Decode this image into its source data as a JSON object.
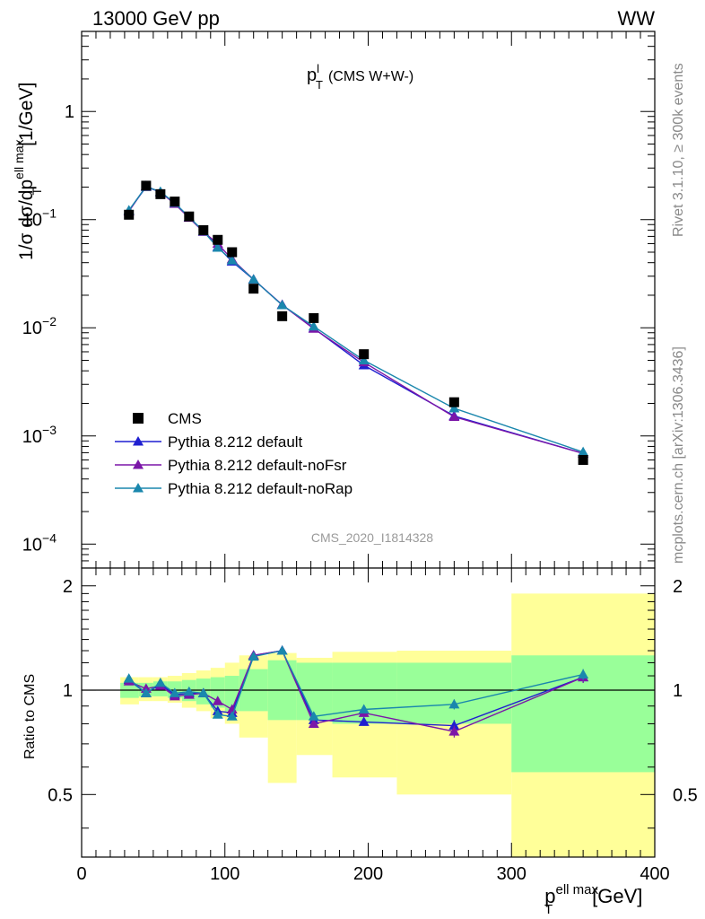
{
  "header": {
    "left": "13000 GeV pp",
    "right": "WW"
  },
  "side_text": {
    "top": "Rivet 3.1.10, ≥ 300k events",
    "bottom": "mcplots.cern.ch [arXiv:1306.3436]"
  },
  "analysis_id": "CMS_2020_I1814328",
  "colors": {
    "data": "#000000",
    "default": "#1f1fd0",
    "noFsr": "#7b16a8",
    "noRap": "#1a87ad",
    "band_inner": "#99ff99",
    "band_outer": "#ffff99"
  },
  "chart_data": [
    {
      "type": "scatter",
      "title_main": "p",
      "title_sup": "l",
      "title_sub": "T",
      "title_suffix": "(CMS W+W-)",
      "ylabel": "1/σ dσ/dp",
      "ylabel_sup": "ell max",
      "ylabel_sub": "T",
      "ylabel_unit": "[1/GeV]",
      "yscale": "log",
      "ylim": [
        6e-05,
        5.5
      ],
      "xlim": [
        0,
        400
      ],
      "y_ticks": [
        {
          "value": 1,
          "base": "1",
          "exp": ""
        },
        {
          "value": 0.1,
          "base": "10",
          "exp": "−1"
        },
        {
          "value": 0.01,
          "base": "10",
          "exp": "−2"
        },
        {
          "value": 0.001,
          "base": "10",
          "exp": "−3"
        },
        {
          "value": 0.0001,
          "base": "10",
          "exp": "−4"
        }
      ],
      "legend_position": "bottom-left",
      "legend": [
        {
          "key": "data",
          "label": "CMS",
          "marker": "square"
        },
        {
          "key": "default",
          "label": "Pythia 8.212 default",
          "marker": "triangle"
        },
        {
          "key": "noFsr",
          "label": "Pythia 8.212 default-noFsr",
          "marker": "triangle"
        },
        {
          "key": "noRap",
          "label": "Pythia 8.212 default-noRap",
          "marker": "triangle"
        }
      ],
      "x": [
        33,
        45,
        55,
        65,
        75,
        85,
        95,
        105,
        120,
        140,
        162,
        197,
        260,
        350
      ],
      "series": [
        {
          "key": "data",
          "name": "CMS",
          "values": [
            0.111,
            0.206,
            0.172,
            0.147,
            0.107,
            0.08,
            0.065,
            0.05,
            0.023,
            0.0128,
            0.0123,
            0.0057,
            0.00205,
            0.0006
          ]
        },
        {
          "key": "default",
          "name": "Pythia 8.212 default",
          "values": [
            0.121,
            0.201,
            0.18,
            0.141,
            0.105,
            0.078,
            0.056,
            0.041,
            0.028,
            0.0163,
            0.0099,
            0.0045,
            0.00153,
            0.00069
          ]
        },
        {
          "key": "noFsr",
          "name": "Pythia 8.212 default-noFsr",
          "values": [
            0.119,
            0.205,
            0.179,
            0.14,
            0.104,
            0.077,
            0.06,
            0.043,
            0.028,
            0.0163,
            0.0098,
            0.0048,
            0.0015,
            0.00069
          ]
        },
        {
          "key": "noRap",
          "name": "Pythia 8.212 default-noRap",
          "values": [
            0.122,
            0.202,
            0.181,
            0.143,
            0.106,
            0.078,
            0.055,
            0.042,
            0.028,
            0.0162,
            0.0103,
            0.005,
            0.0018,
            0.00071
          ]
        }
      ]
    },
    {
      "type": "scatter",
      "ylabel": "Ratio to CMS",
      "xlabel": "p",
      "xlabel_sup": "ell max",
      "xlabel_sub": "T",
      "xlabel_unit": "[GeV]",
      "xlim": [
        0,
        400
      ],
      "ylim": [
        0.33,
        2.25
      ],
      "x_ticks": [
        0,
        100,
        200,
        300,
        400
      ],
      "y_ticks": [
        0.5,
        1,
        2
      ],
      "reference_line": 1,
      "bands": {
        "edges": [
          27,
          40,
          50,
          60,
          70,
          80,
          90,
          100,
          110,
          130,
          150,
          175,
          220,
          300,
          400
        ],
        "inner_lo": [
          0.95,
          0.96,
          0.96,
          0.95,
          0.93,
          0.91,
          0.89,
          0.87,
          0.87,
          0.82,
          0.82,
          0.8,
          0.8,
          0.58
        ],
        "inner_hi": [
          1.05,
          1.05,
          1.06,
          1.06,
          1.07,
          1.08,
          1.09,
          1.1,
          1.15,
          1.22,
          1.2,
          1.2,
          1.2,
          1.26
        ],
        "outer_lo": [
          0.91,
          0.93,
          0.93,
          0.92,
          0.89,
          0.87,
          0.83,
          0.8,
          0.73,
          0.54,
          0.65,
          0.56,
          0.5,
          0.28
        ],
        "outer_hi": [
          1.09,
          1.09,
          1.09,
          1.1,
          1.12,
          1.14,
          1.16,
          1.2,
          1.26,
          1.28,
          1.24,
          1.29,
          1.3,
          1.9
        ]
      },
      "x": [
        33,
        45,
        55,
        65,
        75,
        85,
        95,
        105,
        120,
        140,
        162,
        197,
        260,
        350
      ],
      "series": [
        {
          "key": "default",
          "name": "Pythia 8.212 default",
          "values": [
            1.07,
            0.98,
            1.04,
            0.97,
            0.98,
            0.98,
            0.87,
            0.86,
            1.26,
            1.3,
            0.82,
            0.81,
            0.79,
            1.09
          ],
          "errors": [
            0.02,
            0.02,
            0.02,
            0.02,
            0.02,
            0.02,
            0.02,
            0.02,
            0.02,
            0.02,
            0.02,
            0.02,
            0.03,
            0.04
          ]
        },
        {
          "key": "noFsr",
          "name": "Pythia 8.212 default-noFsr",
          "values": [
            1.06,
            1.01,
            1.03,
            0.96,
            0.97,
            0.98,
            0.93,
            0.88,
            1.26,
            1.3,
            0.8,
            0.86,
            0.76,
            1.09
          ],
          "errors": [
            0.02,
            0.02,
            0.02,
            0.02,
            0.02,
            0.02,
            0.02,
            0.02,
            0.02,
            0.02,
            0.02,
            0.02,
            0.03,
            0.04
          ]
        },
        {
          "key": "noRap",
          "name": "Pythia 8.212 default-noRap",
          "values": [
            1.08,
            0.98,
            1.05,
            0.98,
            0.99,
            0.98,
            0.85,
            0.84,
            1.25,
            1.3,
            0.84,
            0.88,
            0.91,
            1.11
          ],
          "errors": [
            0.02,
            0.02,
            0.02,
            0.02,
            0.02,
            0.02,
            0.02,
            0.02,
            0.02,
            0.02,
            0.02,
            0.02,
            0.03,
            0.04
          ]
        }
      ]
    }
  ]
}
